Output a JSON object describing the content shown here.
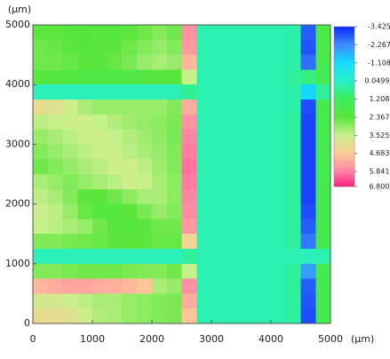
{
  "chart_data": {
    "type": "heatmap",
    "xlabel": "(μm)",
    "ylabel": "(μm)",
    "xlim": [
      0,
      5000
    ],
    "ylim": [
      0,
      5000
    ],
    "xticks": [
      0,
      1000,
      2000,
      3000,
      4000,
      5000
    ],
    "yticks": [
      0,
      1000,
      2000,
      3000,
      4000,
      5000
    ],
    "x": [
      125,
      375,
      625,
      875,
      1125,
      1375,
      1625,
      1875,
      2125,
      2375,
      2625,
      2875,
      3125,
      3375,
      3625,
      3875,
      4125,
      4375,
      4625,
      4875
    ],
    "y": [
      4875,
      4625,
      4375,
      4125,
      3875,
      3625,
      3375,
      3125,
      2875,
      2625,
      2375,
      2125,
      1875,
      1625,
      1375,
      1125,
      875,
      625,
      375,
      125
    ],
    "z": [
      [
        2.4,
        2.4,
        2.3,
        2.3,
        2.2,
        2.2,
        2.4,
        2.6,
        2.8,
        2.6,
        5.6,
        0.3,
        0.3,
        0.3,
        0.3,
        0.3,
        0.3,
        0.4,
        -2.8,
        1.8
      ],
      [
        2.6,
        2.5,
        2.4,
        2.3,
        2.3,
        2.4,
        2.6,
        2.8,
        3.0,
        2.8,
        5.5,
        0.3,
        0.3,
        0.3,
        0.3,
        0.3,
        0.3,
        0.4,
        -2.9,
        1.8
      ],
      [
        2.6,
        2.6,
        2.5,
        2.4,
        2.4,
        2.5,
        2.7,
        3.0,
        3.2,
        3.0,
        5.0,
        0.3,
        0.3,
        0.3,
        0.3,
        0.3,
        0.3,
        0.4,
        -2.6,
        1.7
      ],
      [
        2.2,
        2.2,
        2.1,
        2.1,
        2.0,
        2.0,
        2.0,
        2.1,
        2.2,
        2.3,
        3.5,
        0.3,
        0.3,
        0.3,
        0.3,
        0.3,
        0.3,
        0.5,
        0.8,
        1.5
      ],
      [
        0.2,
        0.2,
        0.2,
        0.2,
        0.2,
        0.2,
        0.2,
        0.2,
        0.2,
        0.2,
        0.6,
        0.3,
        0.3,
        0.3,
        0.3,
        0.3,
        0.3,
        0.4,
        -1.2,
        0.5
      ],
      [
        4.2,
        4.0,
        3.6,
        3.2,
        3.0,
        3.0,
        3.0,
        3.0,
        3.0,
        2.8,
        5.2,
        0.3,
        0.3,
        0.3,
        0.3,
        0.3,
        0.3,
        0.4,
        -3.0,
        1.6
      ],
      [
        3.4,
        3.5,
        3.6,
        3.6,
        3.5,
        3.3,
        3.1,
        3.0,
        2.9,
        2.7,
        5.6,
        0.3,
        0.3,
        0.3,
        0.3,
        0.3,
        0.3,
        0.5,
        -3.1,
        1.6
      ],
      [
        3.0,
        3.2,
        3.4,
        3.6,
        3.6,
        3.5,
        3.3,
        3.1,
        2.9,
        2.7,
        5.8,
        0.3,
        0.3,
        0.3,
        0.3,
        0.3,
        0.3,
        0.5,
        -3.1,
        1.6
      ],
      [
        2.8,
        3.0,
        3.2,
        3.4,
        3.6,
        3.6,
        3.4,
        3.2,
        3.0,
        2.8,
        5.9,
        0.3,
        0.3,
        0.3,
        0.3,
        0.3,
        0.3,
        0.5,
        -3.1,
        1.6
      ],
      [
        2.6,
        2.8,
        3.0,
        3.2,
        3.4,
        3.6,
        3.6,
        3.4,
        3.1,
        2.8,
        6.0,
        0.3,
        0.3,
        0.3,
        0.3,
        0.3,
        0.3,
        0.5,
        -3.1,
        1.6
      ],
      [
        3.2,
        3.0,
        2.8,
        3.0,
        3.2,
        3.4,
        3.6,
        3.5,
        3.2,
        2.9,
        5.9,
        0.3,
        0.3,
        0.3,
        0.3,
        0.3,
        0.3,
        0.5,
        -3.1,
        1.6
      ],
      [
        3.4,
        3.2,
        2.8,
        2.4,
        2.4,
        2.6,
        2.9,
        3.2,
        3.2,
        2.9,
        5.8,
        0.3,
        0.3,
        0.3,
        0.3,
        0.3,
        0.3,
        0.5,
        -3.1,
        1.6
      ],
      [
        3.6,
        3.4,
        3.0,
        2.5,
        2.2,
        2.2,
        2.4,
        2.7,
        3.0,
        2.8,
        5.7,
        0.3,
        0.3,
        0.3,
        0.3,
        0.3,
        0.3,
        0.5,
        -3.0,
        1.6
      ],
      [
        3.5,
        3.4,
        3.2,
        3.0,
        2.6,
        2.3,
        2.2,
        2.4,
        2.6,
        2.6,
        5.5,
        0.3,
        0.3,
        0.3,
        0.3,
        0.3,
        0.3,
        0.5,
        -2.8,
        1.6
      ],
      [
        2.8,
        2.8,
        2.7,
        2.6,
        2.5,
        2.4,
        2.4,
        2.4,
        2.5,
        2.5,
        4.5,
        0.3,
        0.3,
        0.3,
        0.3,
        0.3,
        0.3,
        0.5,
        -2.5,
        1.5
      ],
      [
        0.2,
        0.2,
        0.2,
        0.2,
        0.2,
        0.2,
        0.2,
        0.2,
        0.2,
        0.2,
        0.5,
        0.3,
        0.3,
        0.3,
        0.3,
        0.3,
        0.3,
        0.3,
        0.2,
        0.3
      ],
      [
        2.8,
        2.8,
        2.7,
        2.6,
        2.6,
        2.6,
        2.7,
        2.8,
        2.8,
        2.6,
        3.5,
        0.3,
        0.3,
        0.3,
        0.3,
        0.3,
        0.3,
        0.5,
        -2.0,
        1.5
      ],
      [
        5.0,
        5.2,
        5.3,
        5.3,
        5.2,
        5.1,
        5.0,
        4.8,
        3.2,
        3.0,
        5.6,
        0.3,
        0.3,
        0.3,
        0.3,
        0.3,
        0.3,
        0.5,
        -2.8,
        1.6
      ],
      [
        3.8,
        3.8,
        3.6,
        3.4,
        3.2,
        3.2,
        3.0,
        2.9,
        2.8,
        2.7,
        5.2,
        0.3,
        0.3,
        0.3,
        0.3,
        0.3,
        0.3,
        0.5,
        -2.9,
        1.6
      ],
      [
        4.2,
        4.2,
        4.0,
        3.6,
        3.3,
        3.2,
        3.0,
        2.9,
        2.8,
        2.7,
        4.8,
        0.3,
        0.3,
        0.3,
        0.3,
        0.3,
        0.3,
        0.5,
        -3.0,
        1.6
      ]
    ],
    "colorbar": {
      "ticks": [
        -3.425,
        -2.267,
        -1.108,
        {
          "value": 0.0499,
          "label": "0.04990"
        },
        1.208,
        2.367,
        3.525,
        4.683,
        5.841,
        {
          "value": 6.8,
          "label": "6.800"
        }
      ],
      "colors": [
        "#0a28ff",
        "#3c8cff",
        "#14dcff",
        "#28f0c8",
        "#3cee5a",
        "#5ae63c",
        "#c8f08c",
        "#ffcc96",
        "#ff82a5",
        "#ff1e82"
      ]
    }
  }
}
